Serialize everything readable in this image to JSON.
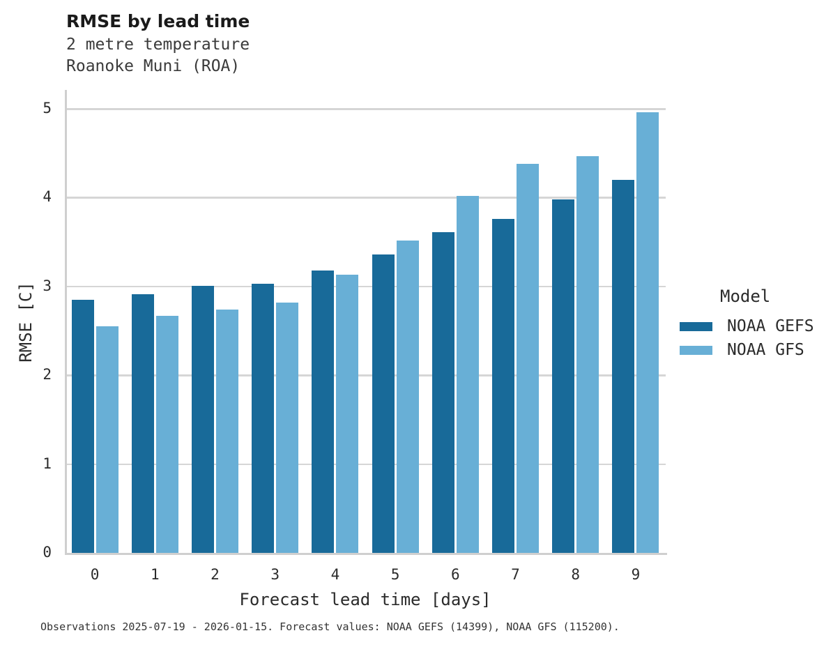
{
  "header": {
    "title": "RMSE by lead time",
    "subtitle_line1": "2 metre temperature",
    "subtitle_line2": "Roanoke Muni (ROA)"
  },
  "chart_data": {
    "type": "bar",
    "title": "RMSE by lead time",
    "subtitle": [
      "2 metre temperature",
      "Roanoke Muni (ROA)"
    ],
    "categories": [
      "0",
      "1",
      "2",
      "3",
      "4",
      "5",
      "6",
      "7",
      "8",
      "9"
    ],
    "series": [
      {
        "name": "NOAA GEFS",
        "color": "#186a99",
        "values": [
          2.85,
          2.91,
          3.01,
          3.03,
          3.18,
          3.36,
          3.61,
          3.76,
          3.98,
          4.2
        ]
      },
      {
        "name": "NOAA GFS",
        "color": "#68afd6",
        "values": [
          2.55,
          2.67,
          2.74,
          2.82,
          3.13,
          3.52,
          4.02,
          4.38,
          4.47,
          4.96
        ]
      }
    ],
    "xlabel": "Forecast lead time [days]",
    "ylabel": "RMSE [C]",
    "ylim": [
      0,
      5
    ],
    "yticks": [
      0,
      1,
      2,
      3,
      4,
      5
    ],
    "grid": "horizontal",
    "legend_title": "Model",
    "legend_position": "right"
  },
  "footer": {
    "note": "Observations 2025-07-19 - 2026-01-15. Forecast values: NOAA GEFS (14399), NOAA GFS (115200)."
  },
  "colors": {
    "gridline": "#d6d6d6",
    "spine": "#cfcfcf",
    "title_text": "#1a1a1a",
    "body_text": "#2b2b2b"
  }
}
